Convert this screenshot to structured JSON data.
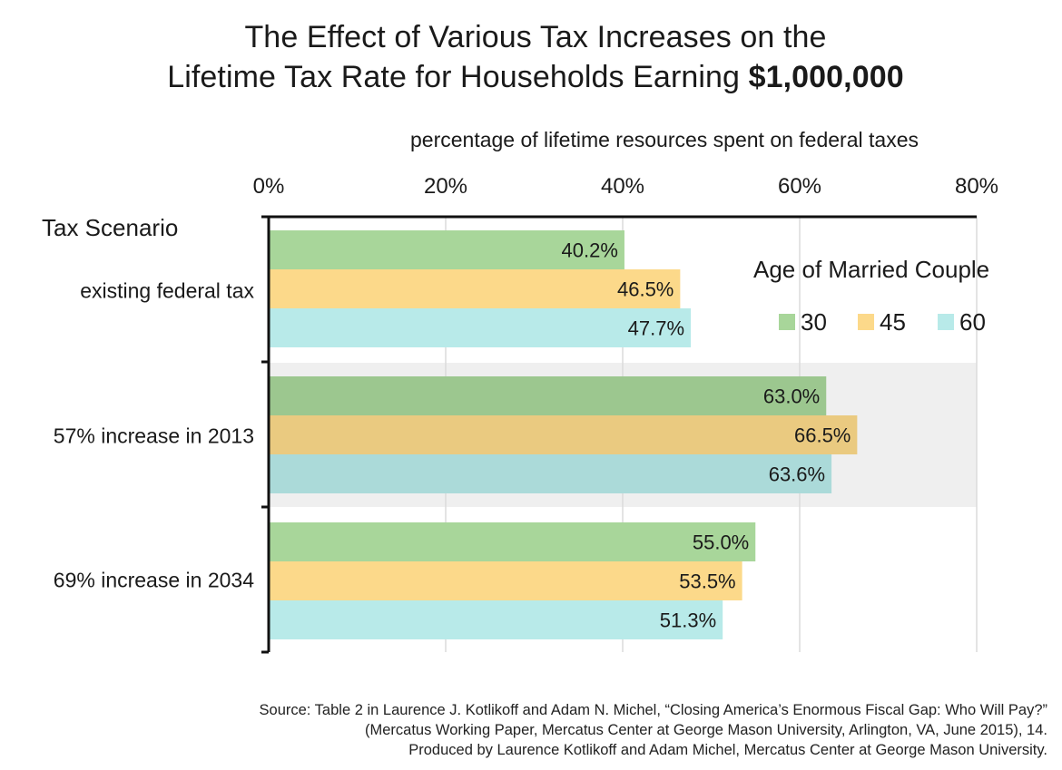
{
  "colors": {
    "age_30": "#a8d69a",
    "age_45": "#fcd98a",
    "age_60": "#b8eae9",
    "highlight_band": "#efefef",
    "grid": "#dcdcdc",
    "axis": "#111111"
  },
  "chart_data": {
    "type": "bar",
    "orientation": "horizontal",
    "title_line1": "The Effect of Various Tax Increases on the",
    "title_line2_prefix": "Lifetime Tax Rate for Households Earning ",
    "title_line2_amount": "$1,000,000",
    "xlabel": "percentage of lifetime resources spent on federal taxes",
    "ylabel": "Tax Scenario",
    "xlim": [
      0,
      80
    ],
    "xticks": [
      0,
      20,
      40,
      60,
      80
    ],
    "xtick_labels": [
      "0%",
      "20%",
      "40%",
      "60%",
      "80%"
    ],
    "grid": true,
    "highlighted_category_index": 1,
    "categories": [
      "existing federal tax",
      "57% increase in 2013",
      "69% increase in 2034"
    ],
    "legend": {
      "title": "Age of Married Couple",
      "position": "top-right"
    },
    "series": [
      {
        "name": "30",
        "color_key": "age_30",
        "values": [
          40.2,
          63.0,
          55.0
        ],
        "labels": [
          "40.2%",
          "63.0%",
          "55.0%"
        ]
      },
      {
        "name": "45",
        "color_key": "age_45",
        "values": [
          46.5,
          66.5,
          53.5
        ],
        "labels": [
          "46.5%",
          "66.5%",
          "53.5%"
        ]
      },
      {
        "name": "60",
        "color_key": "age_60",
        "values": [
          47.7,
          63.6,
          51.3
        ],
        "labels": [
          "47.7%",
          "63.6%",
          "51.3%"
        ]
      }
    ]
  },
  "source": {
    "line1": "Source: Table 2 in Laurence J. Kotlikoff and Adam N. Michel, “Closing America’s Enormous Fiscal Gap: Who Will Pay?”",
    "line2": "(Mercatus Working Paper, Mercatus Center at George Mason University, Arlington, VA, June 2015), 14.",
    "line3": "Produced by Laurence Kotlikoff and Adam Michel, Mercatus Center at George Mason University."
  }
}
